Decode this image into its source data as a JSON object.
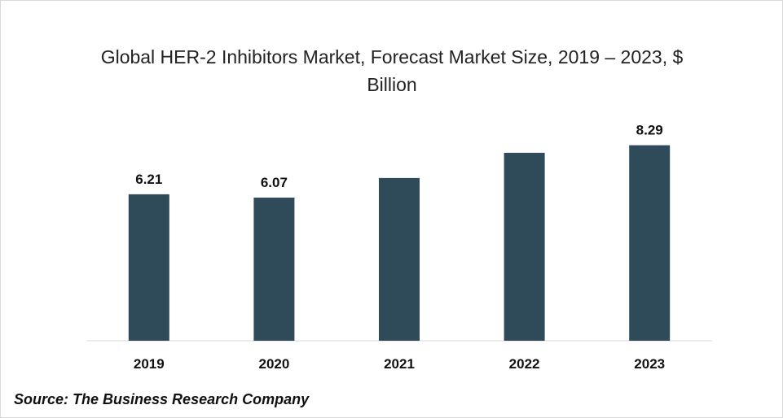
{
  "chart_data": {
    "type": "bar",
    "title": "Global HER-2 Inhibitors Market, Forecast Market Size, 2019 – 2023, $ Billion",
    "categories": [
      "2019",
      "2020",
      "2021",
      "2022",
      "2023"
    ],
    "values": [
      6.21,
      6.07,
      6.9,
      7.97,
      8.29
    ],
    "data_labels": [
      "6.21",
      "6.07",
      "",
      "",
      "8.29"
    ],
    "xlabel": "",
    "ylabel": "",
    "ylim": [
      0,
      10
    ],
    "grid": false,
    "legend": "none",
    "bar_color": "#2f4b59"
  },
  "source": "Source: The Business Research Company"
}
